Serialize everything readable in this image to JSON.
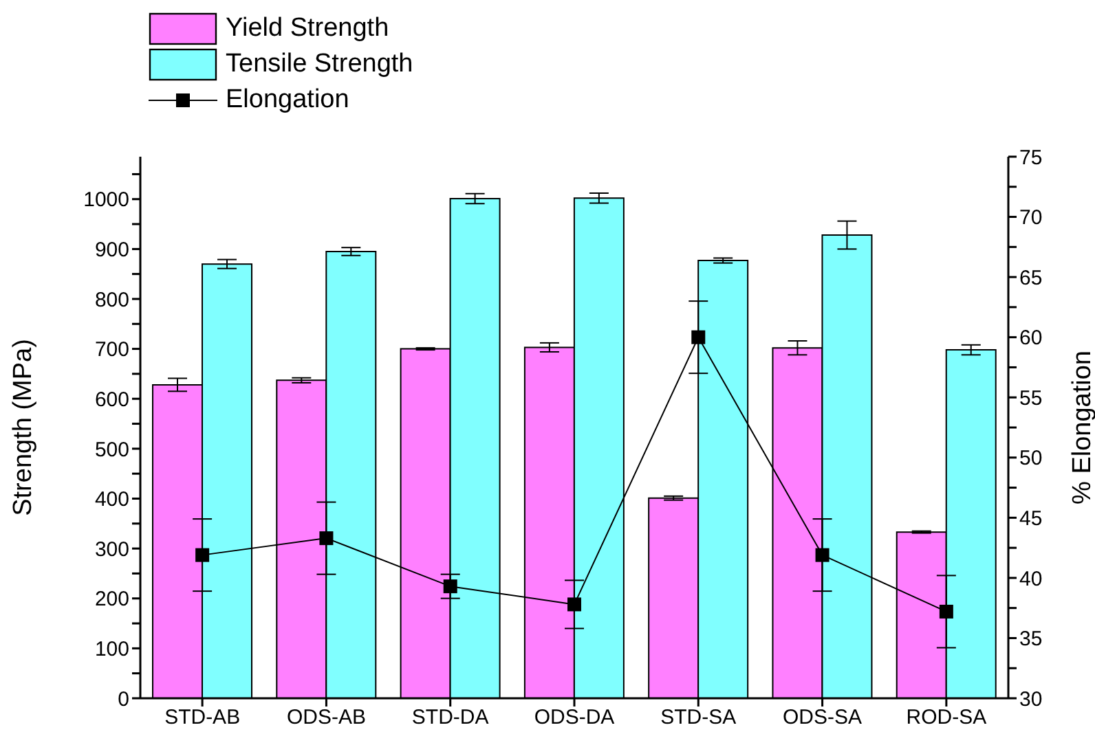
{
  "chart_data": {
    "type": "bar",
    "ylabel": "Strength (MPa)",
    "y2label": "% Elongation",
    "categories": [
      "STD-AB",
      "ODS-AB",
      "STD-DA",
      "ODS-DA",
      "STD-SA",
      "ODS-SA",
      "ROD-SA"
    ],
    "series": [
      {
        "name": "Yield Strength",
        "color": "#ff80ff",
        "values": [
          628,
          637,
          700,
          703,
          401,
          702,
          333
        ],
        "errors": [
          13,
          5,
          2,
          9,
          4,
          14,
          2
        ]
      },
      {
        "name": "Tensile Strength",
        "color": "#80ffff",
        "values": [
          870,
          895,
          1001,
          1002,
          877,
          928,
          698
        ],
        "errors": [
          9,
          8,
          10,
          10,
          5,
          28,
          10
        ]
      },
      {
        "name": "Elongation",
        "type": "line",
        "axis": "y2",
        "color": "#000000",
        "marker": "square",
        "values": [
          41.9,
          43.3,
          39.3,
          37.8,
          60,
          41.9,
          37.2
        ],
        "errors": [
          3,
          3,
          1,
          2,
          3,
          3,
          3
        ]
      }
    ],
    "ylim": [
      0,
      1085
    ],
    "yticks": [
      0,
      {
        "value": 50,
        "label": null
      },
      100,
      {
        "value": 150,
        "label": null
      },
      200,
      {
        "value": 250,
        "label": null
      },
      300,
      {
        "value": 350,
        "label": null
      },
      400,
      {
        "value": 450,
        "label": null
      },
      500,
      {
        "value": 550,
        "label": null
      },
      600,
      {
        "value": 650,
        "label": null
      },
      700,
      {
        "value": 750,
        "label": null
      },
      800,
      {
        "value": 850,
        "label": null
      },
      900,
      {
        "value": 950,
        "label": null
      },
      1000,
      {
        "value": 1050,
        "label": null
      }
    ],
    "y2lim": [
      30,
      75
    ],
    "y2ticks": [
      30,
      {
        "value": 32.5,
        "label": null
      },
      35,
      {
        "value": 37.5,
        "label": null
      },
      40,
      {
        "value": 42.5,
        "label": null
      },
      45,
      {
        "value": 47.5,
        "label": null
      },
      50,
      {
        "value": 52.5,
        "label": null
      },
      55,
      {
        "value": 57.5,
        "label": null
      },
      60,
      {
        "value": 62.5,
        "label": null
      },
      65,
      {
        "value": 67.5,
        "label": null
      },
      70,
      {
        "value": 72.5,
        "label": null
      },
      75
    ],
    "legend": "top left",
    "grid": false
  }
}
